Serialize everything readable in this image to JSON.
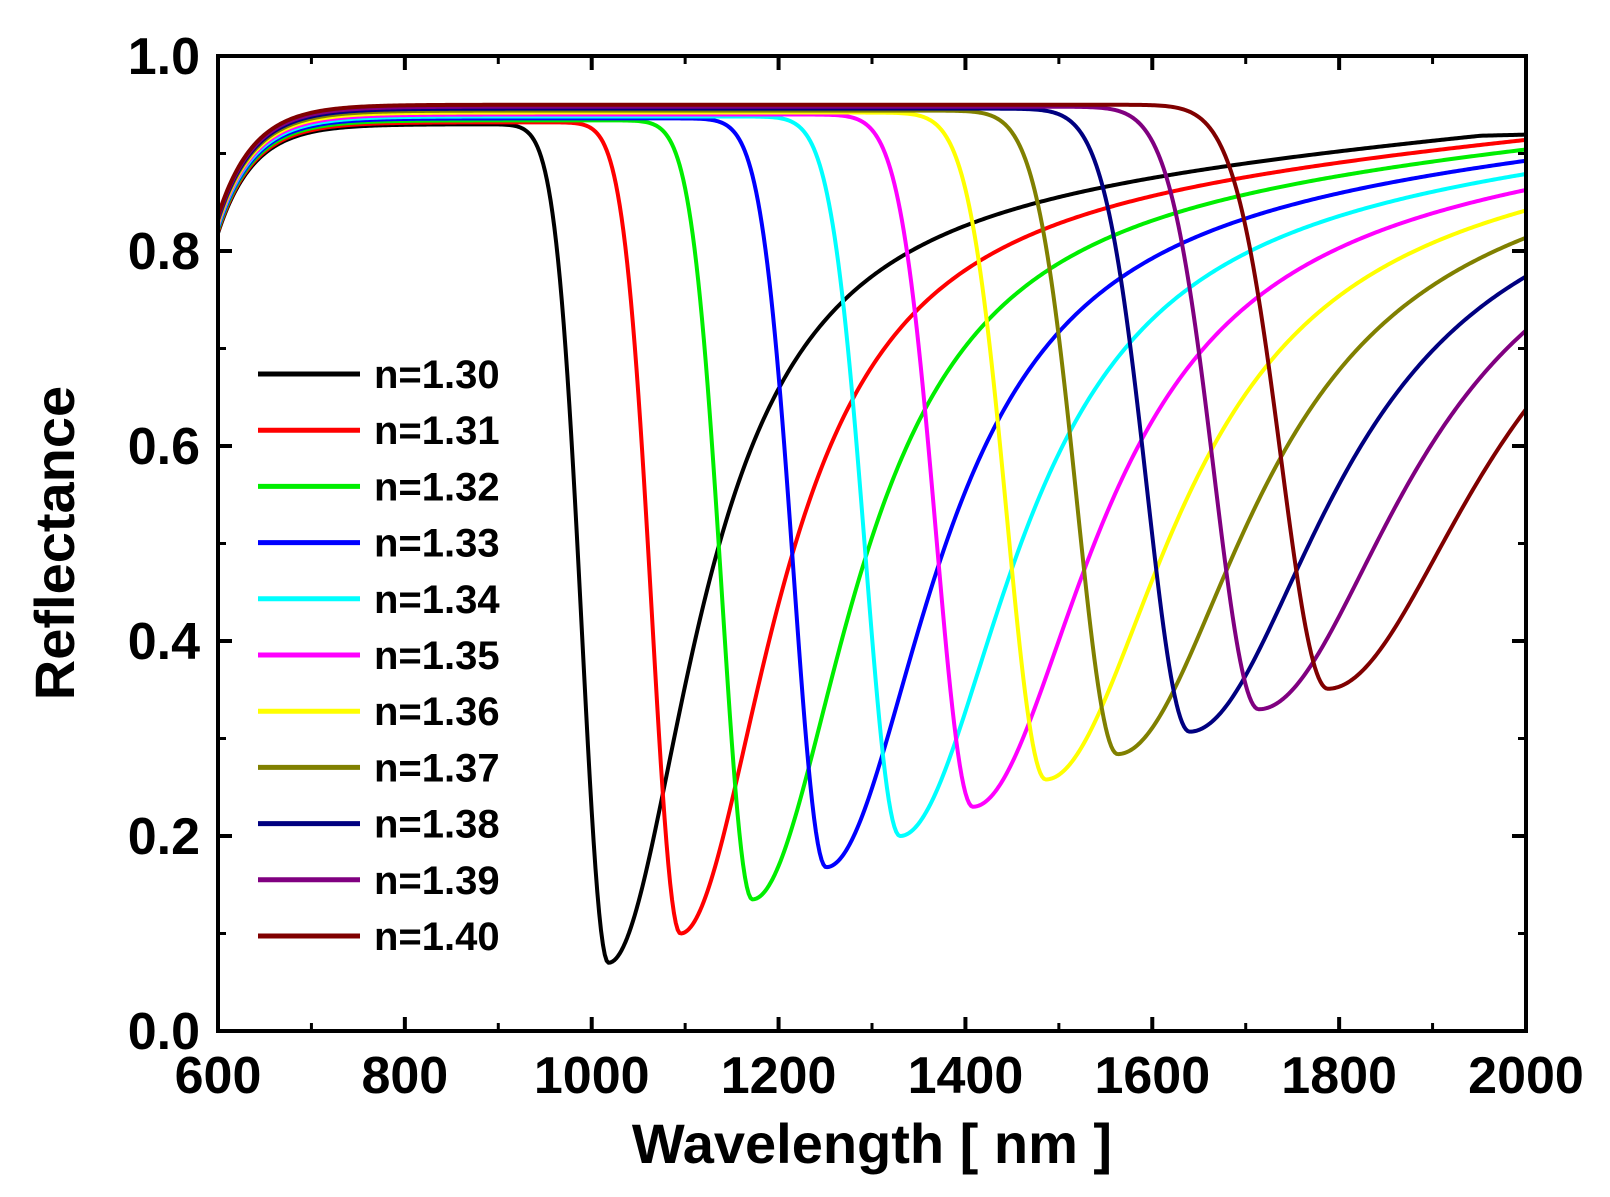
{
  "chart_data": {
    "type": "line",
    "xlabel": "Wavelength [ nm ]",
    "ylabel": "Reflectance",
    "xlim": [
      600,
      2000
    ],
    "ylim": [
      0.0,
      1.0
    ],
    "x_major_ticks": [
      600,
      800,
      1000,
      1200,
      1400,
      1600,
      1800,
      2000
    ],
    "x_tick_labels": [
      "600",
      "800",
      "1000",
      "1200",
      "1400",
      "1600",
      "1800",
      "2000"
    ],
    "y_major_ticks": [
      0.0,
      0.2,
      0.4,
      0.6,
      0.8,
      1.0
    ],
    "y_tick_labels": [
      "0.0",
      "0.2",
      "0.4",
      "0.6",
      "0.8",
      "1.0"
    ],
    "legend_position": "left-center",
    "series": [
      {
        "name": "n=1.30",
        "color": "#000000",
        "dip_wavelength": 1018,
        "dip_min": 0.07,
        "plateau": 0.93
      },
      {
        "name": "n=1.31",
        "color": "#ff0000",
        "dip_wavelength": 1095,
        "dip_min": 0.1,
        "plateau": 0.932
      },
      {
        "name": "n=1.32",
        "color": "#00ee00",
        "dip_wavelength": 1172,
        "dip_min": 0.135,
        "plateau": 0.934
      },
      {
        "name": "n=1.33",
        "color": "#0000ff",
        "dip_wavelength": 1251,
        "dip_min": 0.168,
        "plateau": 0.936
      },
      {
        "name": "n=1.34",
        "color": "#00ffff",
        "dip_wavelength": 1330,
        "dip_min": 0.2,
        "plateau": 0.938
      },
      {
        "name": "n=1.35",
        "color": "#ff00ff",
        "dip_wavelength": 1408,
        "dip_min": 0.23,
        "plateau": 0.94
      },
      {
        "name": "n=1.36",
        "color": "#ffff00",
        "dip_wavelength": 1486,
        "dip_min": 0.258,
        "plateau": 0.942
      },
      {
        "name": "n=1.37",
        "color": "#808000",
        "dip_wavelength": 1563,
        "dip_min": 0.284,
        "plateau": 0.944
      },
      {
        "name": "n=1.38",
        "color": "#000080",
        "dip_wavelength": 1640,
        "dip_min": 0.307,
        "plateau": 0.946
      },
      {
        "name": "n=1.39",
        "color": "#800080",
        "dip_wavelength": 1714,
        "dip_min": 0.33,
        "plateau": 0.948
      },
      {
        "name": "n=1.40",
        "color": "#800000",
        "dip_wavelength": 1788,
        "dip_min": 0.351,
        "plateau": 0.95
      }
    ]
  }
}
